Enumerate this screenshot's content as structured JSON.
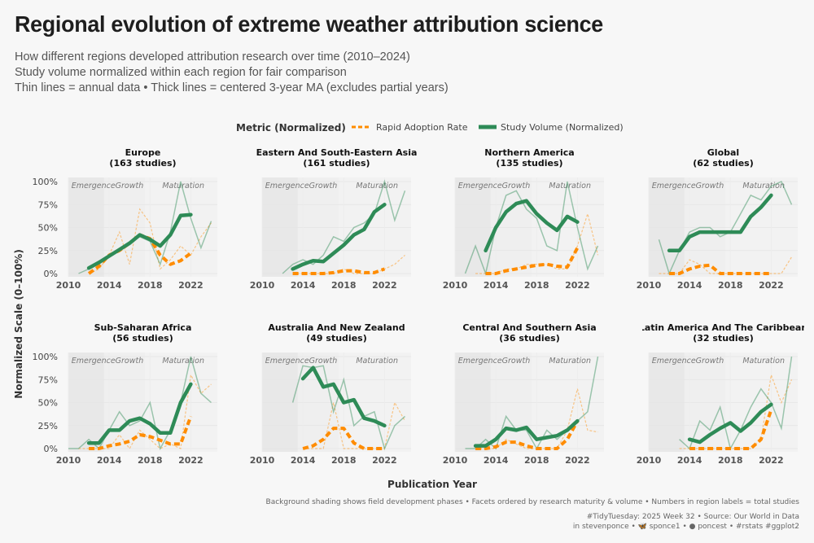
{
  "title": "Regional evolution of extreme weather attribution science",
  "subtitle_lines": [
    "How different regions developed attribution research over time (2010–2024)",
    "Study volume normalized within each region for fair comparison",
    "Thin lines = annual data • Thick lines = centered 3-year MA (excludes partial years)"
  ],
  "legend": {
    "title": "Metric (Normalized)",
    "items": [
      {
        "label": "Rapid Adoption Rate",
        "color": "#ff8c00"
      },
      {
        "label": "Study Volume (Normalized)",
        "color": "#2e8b57"
      }
    ]
  },
  "axis": {
    "xlabel": "Publication Year",
    "ylabel": "Normalized Scale (0–100%)",
    "x_ticks": [
      2010,
      2014,
      2018,
      2022
    ],
    "y_ticks": [
      "0%",
      "25%",
      "50%",
      "75%",
      "100%"
    ]
  },
  "phases": [
    "Emergence",
    "Growth",
    "Maturation"
  ],
  "note": "Background shading shows field development phases • Facets ordered by research maturity & volume • Numbers in region labels = total studies",
  "credit_line1": "#TidyTuesday: 2025 Week 32 • Source: Our World in Data",
  "credit_line2": "in stevenponce • 🦋 sponce1 • ● poncest • #rstats #ggplot2",
  "chart_data": [
    {
      "type": "line",
      "region": "Europe",
      "label": "(163 studies)",
      "volume_x": [
        2011,
        2012,
        2013,
        2014,
        2015,
        2016,
        2017,
        2018,
        2019,
        2020,
        2021,
        2022,
        2023,
        2024
      ],
      "volume": [
        0,
        5,
        12,
        20,
        25,
        33,
        40,
        35,
        10,
        45,
        100,
        60,
        28,
        57
      ],
      "volume_ma_x": [
        2012,
        2013,
        2014,
        2015,
        2016,
        2017,
        2018,
        2019,
        2020,
        2021,
        2022
      ],
      "volume_ma": [
        6,
        12,
        19,
        26,
        33,
        42,
        37,
        30,
        42,
        63,
        64
      ],
      "rapid_x": [
        2012,
        2013,
        2014,
        2015,
        2016,
        2017,
        2018,
        2019,
        2020,
        2021,
        2022,
        2023,
        2024
      ],
      "rapid": [
        0,
        5,
        20,
        45,
        10,
        70,
        55,
        5,
        15,
        30,
        20,
        40,
        55
      ],
      "rapid_ma_x": [
        2012,
        2013,
        2014,
        2015,
        2016,
        2017,
        2018,
        2019,
        2020,
        2021,
        2022
      ],
      "rapid_ma": [
        0,
        8,
        20,
        25,
        33,
        42,
        38,
        20,
        10,
        14,
        22
      ]
    },
    {
      "type": "line",
      "region": "Eastern And South-Eastern Asia",
      "label": "(161 studies)",
      "volume_x": [
        2012,
        2013,
        2014,
        2015,
        2016,
        2017,
        2018,
        2019,
        2020,
        2021,
        2022,
        2023,
        2024
      ],
      "volume": [
        0,
        10,
        15,
        10,
        20,
        40,
        35,
        50,
        55,
        65,
        100,
        58,
        90
      ],
      "volume_ma_x": [
        2013,
        2014,
        2015,
        2016,
        2017,
        2018,
        2019,
        2020,
        2021,
        2022
      ],
      "volume_ma": [
        5,
        10,
        14,
        13,
        22,
        31,
        42,
        48,
        67,
        75
      ],
      "rapid_x": [
        2013,
        2014,
        2015,
        2016,
        2017,
        2018,
        2019,
        2020,
        2021,
        2022,
        2023,
        2024
      ],
      "rapid": [
        0,
        0,
        0,
        0,
        0,
        5,
        0,
        0,
        0,
        5,
        10,
        20
      ],
      "rapid_ma_x": [
        2013,
        2014,
        2015,
        2016,
        2017,
        2018,
        2019,
        2020,
        2021,
        2022
      ],
      "rapid_ma": [
        0,
        0,
        0,
        0,
        1,
        3,
        3,
        1,
        1,
        5
      ]
    },
    {
      "type": "line",
      "region": "Northern America",
      "label": "(135 studies)",
      "volume_x": [
        2011,
        2012,
        2013,
        2014,
        2015,
        2016,
        2017,
        2018,
        2019,
        2020,
        2021,
        2022,
        2023,
        2024
      ],
      "volume": [
        0,
        30,
        0,
        50,
        85,
        90,
        70,
        60,
        30,
        25,
        100,
        50,
        5,
        30
      ],
      "volume_ma_x": [
        2013,
        2014,
        2015,
        2016,
        2017,
        2018,
        2019,
        2020,
        2021,
        2022
      ],
      "volume_ma": [
        25,
        50,
        67,
        76,
        79,
        65,
        55,
        47,
        62,
        56
      ],
      "rapid_x": [
        2012,
        2013,
        2014,
        2015,
        2016,
        2017,
        2018,
        2019,
        2020,
        2021,
        2022,
        2023,
        2024
      ],
      "rapid": [
        0,
        0,
        0,
        5,
        5,
        10,
        10,
        10,
        5,
        5,
        30,
        65,
        20
      ],
      "rapid_ma_x": [
        2013,
        2014,
        2015,
        2016,
        2017,
        2018,
        2019,
        2020,
        2021,
        2022
      ],
      "rapid_ma": [
        0,
        0,
        3,
        5,
        7,
        9,
        10,
        8,
        7,
        28
      ]
    },
    {
      "type": "line",
      "region": "Global",
      "label": "(62 studies)",
      "volume_x": [
        2011,
        2012,
        2013,
        2014,
        2015,
        2016,
        2017,
        2018,
        2019,
        2020,
        2021,
        2022,
        2023,
        2024
      ],
      "volume": [
        37,
        0,
        25,
        45,
        50,
        50,
        40,
        45,
        65,
        85,
        80,
        95,
        100,
        75
      ],
      "volume_ma_x": [
        2012,
        2013,
        2014,
        2015,
        2016,
        2017,
        2018,
        2019,
        2020,
        2021,
        2022
      ],
      "volume_ma": [
        25,
        25,
        40,
        45,
        45,
        45,
        45,
        45,
        62,
        72,
        85
      ],
      "rapid_x": [
        2011,
        2012,
        2013,
        2014,
        2015,
        2016,
        2017,
        2018,
        2019,
        2020,
        2021,
        2022,
        2023,
        2024
      ],
      "rapid": [
        0,
        0,
        0,
        15,
        10,
        0,
        0,
        0,
        0,
        0,
        0,
        0,
        0,
        18
      ],
      "rapid_ma_x": [
        2012,
        2013,
        2014,
        2015,
        2016,
        2017,
        2018,
        2019,
        2020,
        2021,
        2022
      ],
      "rapid_ma": [
        0,
        0,
        5,
        8,
        9,
        0,
        0,
        0,
        0,
        0,
        0
      ]
    },
    {
      "type": "line",
      "region": "Sub-Saharan Africa",
      "label": "(56 studies)",
      "volume_x": [
        2010,
        2011,
        2012,
        2013,
        2014,
        2015,
        2016,
        2017,
        2018,
        2019,
        2020,
        2021,
        2022,
        2023,
        2024
      ],
      "volume": [
        0,
        0,
        10,
        0,
        20,
        40,
        25,
        30,
        50,
        0,
        20,
        50,
        100,
        60,
        50
      ],
      "volume_ma_x": [
        2012,
        2013,
        2014,
        2015,
        2016,
        2017,
        2018,
        2019,
        2020,
        2021,
        2022
      ],
      "volume_ma": [
        6,
        6,
        20,
        20,
        30,
        33,
        27,
        17,
        17,
        50,
        70
      ],
      "rapid_x": [
        2011,
        2012,
        2013,
        2014,
        2015,
        2016,
        2017,
        2018,
        2019,
        2020,
        2021,
        2022,
        2023,
        2024
      ],
      "rapid": [
        0,
        0,
        0,
        0,
        15,
        0,
        20,
        10,
        0,
        5,
        0,
        80,
        60,
        70
      ],
      "rapid_ma_x": [
        2012,
        2013,
        2014,
        2015,
        2016,
        2017,
        2018,
        2019,
        2020,
        2021,
        2022
      ],
      "rapid_ma": [
        0,
        0,
        3,
        5,
        8,
        15,
        13,
        9,
        5,
        5,
        35
      ]
    },
    {
      "type": "line",
      "region": "Australia And New Zealand",
      "label": "(49 studies)",
      "volume_x": [
        2013,
        2014,
        2015,
        2016,
        2017,
        2018,
        2019,
        2020,
        2021,
        2022,
        2023,
        2024
      ],
      "volume": [
        50,
        90,
        88,
        90,
        40,
        75,
        25,
        35,
        40,
        0,
        25,
        35
      ],
      "volume_ma_x": [
        2014,
        2015,
        2016,
        2017,
        2018,
        2019,
        2020,
        2021,
        2022
      ],
      "volume_ma": [
        76,
        88,
        67,
        70,
        50,
        53,
        33,
        30,
        25
      ],
      "rapid_x": [
        2014,
        2015,
        2016,
        2017,
        2018,
        2019,
        2020,
        2021,
        2022,
        2023,
        2024
      ],
      "rapid": [
        0,
        0,
        0,
        50,
        0,
        0,
        0,
        0,
        0,
        50,
        30
      ],
      "rapid_ma_x": [
        2014,
        2015,
        2016,
        2017,
        2018,
        2019,
        2020,
        2021,
        2022
      ],
      "rapid_ma": [
        0,
        3,
        10,
        22,
        22,
        6,
        0,
        0,
        0
      ]
    },
    {
      "type": "line",
      "region": "Central And Southern Asia",
      "label": "(36 studies)",
      "volume_x": [
        2011,
        2012,
        2013,
        2014,
        2015,
        2016,
        2017,
        2018,
        2019,
        2020,
        2021,
        2022,
        2023,
        2024
      ],
      "volume": [
        0,
        0,
        10,
        0,
        35,
        20,
        20,
        0,
        20,
        10,
        20,
        30,
        40,
        100
      ],
      "volume_ma_x": [
        2012,
        2013,
        2014,
        2015,
        2016,
        2017,
        2018,
        2019,
        2020,
        2021,
        2022
      ],
      "volume_ma": [
        3,
        3,
        10,
        22,
        20,
        23,
        10,
        12,
        14,
        20,
        30
      ],
      "rapid_x": [
        2012,
        2013,
        2014,
        2015,
        2016,
        2017,
        2018,
        2019,
        2020,
        2021,
        2022,
        2023,
        2024
      ],
      "rapid": [
        0,
        0,
        0,
        10,
        5,
        0,
        0,
        0,
        0,
        20,
        65,
        20,
        18
      ],
      "rapid_ma_x": [
        2012,
        2013,
        2014,
        2015,
        2016,
        2017,
        2018,
        2019,
        2020,
        2021,
        2022
      ],
      "rapid_ma": [
        0,
        0,
        2,
        7,
        7,
        3,
        0,
        0,
        0,
        10,
        30
      ]
    },
    {
      "type": "line",
      "region": "Latin America And The Caribbean",
      "label": "(32 studies)",
      "volume_x": [
        2013,
        2014,
        2015,
        2016,
        2017,
        2018,
        2019,
        2020,
        2021,
        2022,
        2023,
        2024
      ],
      "volume": [
        10,
        0,
        30,
        20,
        45,
        0,
        20,
        45,
        65,
        50,
        22,
        100
      ],
      "volume_ma_x": [
        2014,
        2015,
        2016,
        2017,
        2018,
        2019,
        2020,
        2021,
        2022
      ],
      "volume_ma": [
        10,
        7,
        15,
        22,
        28,
        19,
        28,
        40,
        48
      ],
      "rapid_x": [
        2013,
        2014,
        2015,
        2016,
        2017,
        2018,
        2019,
        2020,
        2021,
        2022,
        2023,
        2024
      ],
      "rapid": [
        0,
        0,
        0,
        0,
        0,
        0,
        0,
        0,
        10,
        80,
        50,
        75
      ],
      "rapid_ma_x": [
        2014,
        2015,
        2016,
        2017,
        2018,
        2019,
        2020,
        2021,
        2022
      ],
      "rapid_ma": [
        0,
        0,
        0,
        0,
        0,
        0,
        0,
        10,
        42
      ]
    }
  ]
}
